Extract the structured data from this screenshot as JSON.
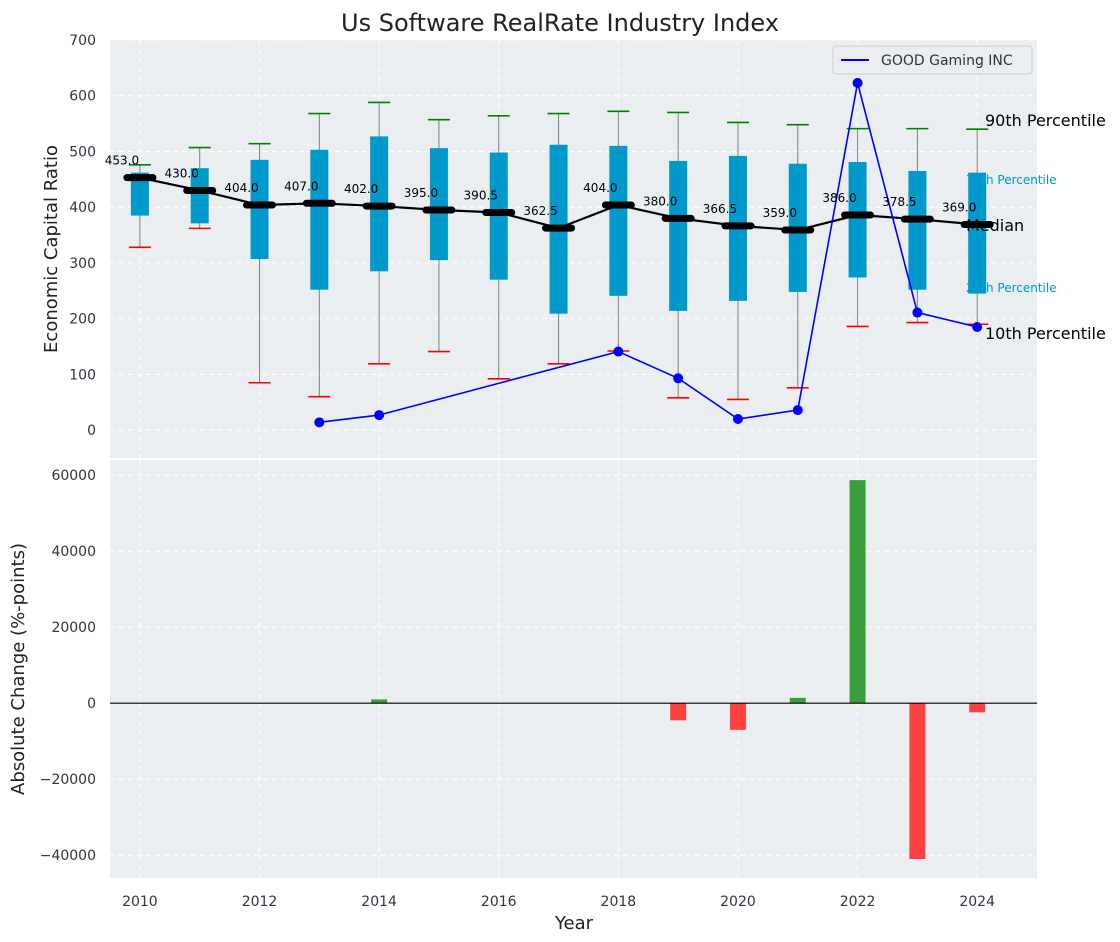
{
  "chart_data": [
    {
      "type": "boxplot",
      "title": "Us Software RealRate Industry Index",
      "ylabel": "Economic Capital Ratio",
      "ylim": [
        -50,
        700
      ],
      "yticks": [
        0,
        100,
        200,
        300,
        400,
        500,
        600,
        700
      ],
      "grid": true,
      "legend": {
        "position": "top-right",
        "entries": [
          "GOOD Gaming INC"
        ]
      },
      "years": [
        2010,
        2011,
        2012,
        2013,
        2014,
        2015,
        2016,
        2017,
        2018,
        2019,
        2020,
        2021,
        2022,
        2023,
        2024
      ],
      "p10": [
        328,
        362,
        85,
        60,
        119,
        141,
        92,
        119,
        142,
        58,
        55,
        76,
        186,
        193,
        190
      ],
      "p25": [
        385,
        371,
        307,
        252,
        285,
        305,
        270,
        209,
        241,
        214,
        232,
        248,
        274,
        252,
        245
      ],
      "median": [
        453,
        430,
        404,
        407,
        402,
        395,
        390.5,
        362.5,
        404,
        380,
        366.5,
        359,
        386,
        378.5,
        369
      ],
      "median_labels": [
        "453.0",
        "430.0",
        "404.0",
        "407.0",
        "402.0",
        "395.0",
        "390.5",
        "362.5",
        "404.0",
        "380.0",
        "366.5",
        "359.0",
        "386.0",
        "378.5",
        "369.0"
      ],
      "p75": [
        462,
        470,
        485,
        503,
        527,
        506,
        498,
        512,
        510,
        483,
        492,
        478,
        481,
        465,
        462
      ],
      "p90": [
        476,
        507,
        514,
        568,
        588,
        557,
        564,
        568,
        572,
        570,
        552,
        548,
        541,
        541,
        540
      ],
      "company": {
        "name": "GOOD Gaming INC",
        "years": [
          2013,
          2014,
          2018,
          2019,
          2020,
          2021,
          2022,
          2023,
          2024
        ],
        "values": [
          14,
          27,
          141,
          93,
          20,
          36,
          623,
          211,
          185
        ]
      },
      "annotations": {
        "p90": "90th Percentile",
        "p75": "75th Percentile",
        "median": "Median",
        "p25": "25th Percentile",
        "p10": "10th Percentile"
      },
      "colors": {
        "box": "#0099cc",
        "median_line": "#000000",
        "company": "#0000ff",
        "p90_cap": "#008000",
        "p10_cap": "#ff0000",
        "whisker": "#808080",
        "background": "#eaeef0"
      }
    },
    {
      "type": "bar",
      "ylabel": "Absolute Change (%-points)",
      "xlabel": "Year",
      "ylim": [
        -46000,
        64000
      ],
      "yticks": [
        -40000,
        -20000,
        0,
        20000,
        40000,
        60000
      ],
      "ytick_labels": [
        "−40000",
        "−20000",
        "0",
        "20000",
        "40000",
        "60000"
      ],
      "xticks": [
        2010,
        2012,
        2014,
        2016,
        2018,
        2020,
        2022,
        2024
      ],
      "xlim": [
        2009.5,
        2025
      ],
      "years": [
        2014,
        2019,
        2020,
        2021,
        2022,
        2023,
        2024
      ],
      "values": [
        1000,
        -4500,
        -7000,
        1400,
        58700,
        -41000,
        -2400
      ],
      "colors": {
        "positive": "#3a9e3a",
        "negative": "#ff4040"
      }
    }
  ]
}
